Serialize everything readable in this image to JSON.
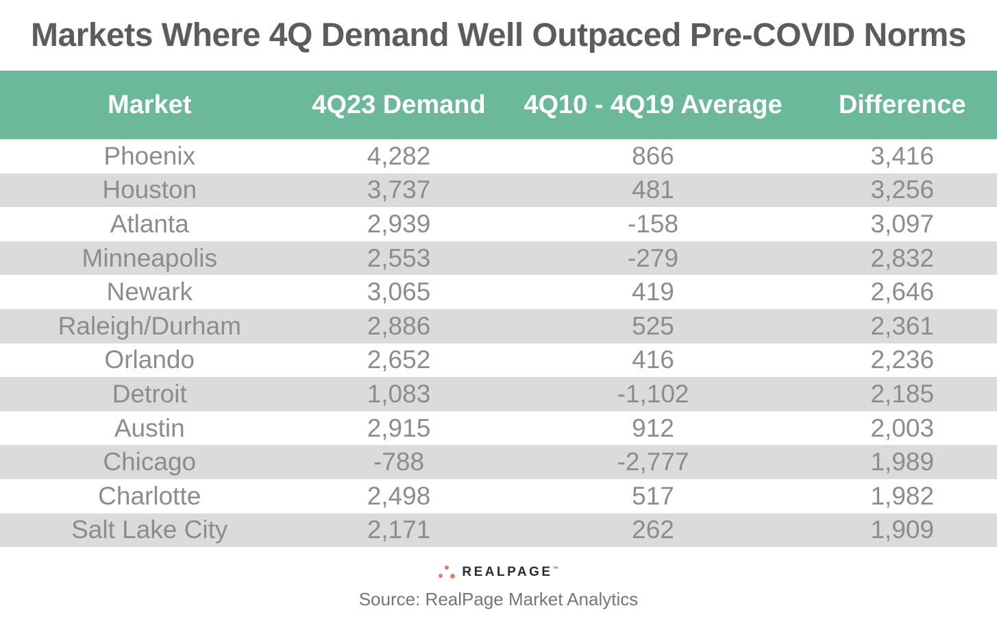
{
  "title": "Markets Where 4Q Demand Well Outpaced Pre-COVID Norms",
  "colors": {
    "header_bg": "#6bb99a",
    "header_text": "#ffffff",
    "row_alt_bg": "#dbdbdb",
    "data_text": "#8c8c8c",
    "title_text": "#595d5f",
    "logo_dots": "#eb7a5e",
    "logo_text": "#262c33",
    "source_text": "#737679"
  },
  "table": {
    "columns": [
      "Market",
      "4Q23 Demand",
      "4Q10 - 4Q19 Average",
      "Difference"
    ],
    "rows": [
      {
        "market": "Phoenix",
        "demand": "4,282",
        "average": "866",
        "difference": "3,416"
      },
      {
        "market": "Houston",
        "demand": "3,737",
        "average": "481",
        "difference": "3,256"
      },
      {
        "market": "Atlanta",
        "demand": "2,939",
        "average": "-158",
        "difference": "3,097"
      },
      {
        "market": "Minneapolis",
        "demand": "2,553",
        "average": "-279",
        "difference": "2,832"
      },
      {
        "market": "Newark",
        "demand": "3,065",
        "average": "419",
        "difference": "2,646"
      },
      {
        "market": "Raleigh/Durham",
        "demand": "2,886",
        "average": "525",
        "difference": "2,361"
      },
      {
        "market": "Orlando",
        "demand": "2,652",
        "average": "416",
        "difference": "2,236"
      },
      {
        "market": "Detroit",
        "demand": "1,083",
        "average": "-1,102",
        "difference": "2,185"
      },
      {
        "market": "Austin",
        "demand": "2,915",
        "average": "912",
        "difference": "2,003"
      },
      {
        "market": "Chicago",
        "demand": "-788",
        "average": "-2,777",
        "difference": "1,989"
      },
      {
        "market": "Charlotte",
        "demand": "2,498",
        "average": "517",
        "difference": "1,982"
      },
      {
        "market": "Salt Lake City",
        "demand": "2,171",
        "average": "262",
        "difference": "1,909"
      }
    ]
  },
  "chart_data": {
    "type": "table",
    "title": "Markets Where 4Q Demand Well Outpaced Pre-COVID Norms",
    "columns": [
      "Market",
      "4Q23 Demand",
      "4Q10 - 4Q19 Average",
      "Difference"
    ],
    "rows": [
      [
        "Phoenix",
        4282,
        866,
        3416
      ],
      [
        "Houston",
        3737,
        481,
        3256
      ],
      [
        "Atlanta",
        2939,
        -158,
        3097
      ],
      [
        "Minneapolis",
        2553,
        -279,
        2832
      ],
      [
        "Newark",
        3065,
        419,
        2646
      ],
      [
        "Raleigh/Durham",
        2886,
        525,
        2361
      ],
      [
        "Orlando",
        2652,
        416,
        2236
      ],
      [
        "Detroit",
        1083,
        -1102,
        2185
      ],
      [
        "Austin",
        2915,
        912,
        2003
      ],
      [
        "Chicago",
        -788,
        -2777,
        1989
      ],
      [
        "Charlotte",
        2498,
        517,
        1982
      ],
      [
        "Salt Lake City",
        2171,
        262,
        1909
      ]
    ],
    "source": "Source: RealPage Market Analytics",
    "layout": {
      "striped_rows": true,
      "alignment": "center"
    }
  },
  "footer": {
    "logo_text": "REALPAGE",
    "logo_mark": "™",
    "source": "Source: RealPage Market Analytics"
  }
}
